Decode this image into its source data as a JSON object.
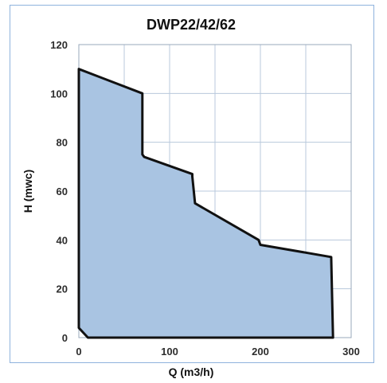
{
  "chart_data": {
    "type": "area",
    "title": "DWP22/42/62",
    "xlabel": "Q (m3/h)",
    "ylabel": "H (mwc)",
    "xlim": [
      0,
      300
    ],
    "ylim": [
      0,
      120
    ],
    "xticks": [
      0,
      100,
      200,
      300
    ],
    "yticks": [
      0,
      20,
      40,
      60,
      80,
      100,
      120
    ],
    "grid": true,
    "fill_color": "#a9c4e2",
    "line_color": "#111111",
    "grid_color": "#b8c8dc",
    "series": [
      {
        "x": [
          0,
          0,
          70,
          70,
          72,
          125,
          125,
          128,
          198,
          200,
          278,
          280,
          10,
          0
        ],
        "y": [
          4,
          110,
          100,
          75,
          74,
          67,
          66,
          55,
          40,
          38,
          33,
          0,
          0,
          4
        ]
      }
    ]
  }
}
